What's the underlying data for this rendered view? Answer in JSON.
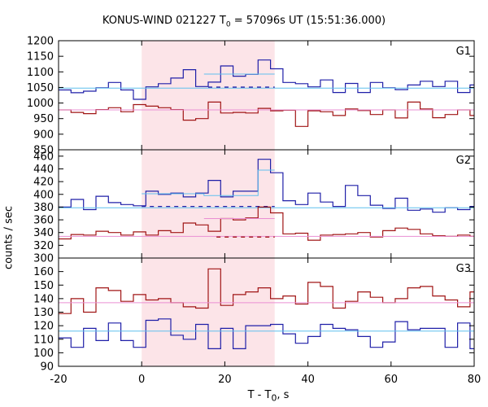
{
  "chart_data": {
    "type": "line",
    "title": "KONUS-WIND 021227 T0 = 57096s UT (15:51:36.000)",
    "title_parts": {
      "pre": "KONUS-WIND 021227 T",
      "sub": "0",
      "post": " = 57096s UT (15:51:36.000)"
    },
    "xlabel_parts": {
      "pre": "T - T",
      "sub": "0",
      "post": ", s"
    },
    "ylabel": "counts / sec",
    "xlim": [
      -20,
      80
    ],
    "xticks": [
      -20,
      0,
      20,
      40,
      60,
      80
    ],
    "highlight_interval": [
      0,
      32
    ],
    "colors": {
      "dark_blue": "#1f1fa8",
      "light_blue": "#5fc0ee",
      "dark_red": "#a01515",
      "pink": "#ea8fd3",
      "highlight": "#fce4e8"
    },
    "panels": [
      {
        "label": "G1",
        "ylim": [
          850,
          1200
        ],
        "yticks": [
          850,
          900,
          950,
          1000,
          1050,
          1100,
          1150,
          1200
        ],
        "series": [
          {
            "color": "dark_blue",
            "edges": [
              -20,
              -17,
              -14,
              -11,
              -8,
              -5,
              -2,
              1,
              4,
              7,
              10,
              13,
              16,
              19,
              22,
              25,
              28,
              31,
              34,
              37,
              40,
              43,
              46,
              49,
              52,
              55,
              58,
              61,
              64,
              67,
              70,
              73,
              76,
              79
            ],
            "values": [
              1042,
              1033,
              1038,
              1049,
              1066,
              1042,
              1012,
              1052,
              1062,
              1080,
              1107,
              1053,
              1067,
              1119,
              1086,
              1092,
              1138,
              1110,
              1066,
              1062,
              1052,
              1074,
              1034,
              1063,
              1034,
              1066,
              1049,
              1043,
              1058,
              1070,
              1053,
              1070,
              1034,
              1058
            ]
          },
          {
            "color": "light_blue",
            "type": "level",
            "value": 1048
          },
          {
            "color": "light_blue",
            "type": "step",
            "edges": [
              15,
              32
            ],
            "values": [
              1093
            ]
          },
          {
            "color": "dark_blue",
            "type": "dashed",
            "range": [
              16,
              32
            ],
            "value": 1051
          },
          {
            "color": "dark_red",
            "edges": [
              -20,
              -17,
              -14,
              -11,
              -8,
              -5,
              -2,
              1,
              4,
              7,
              10,
              13,
              16,
              19,
              22,
              25,
              28,
              31,
              34,
              37,
              40,
              43,
              46,
              49,
              52,
              55,
              58,
              61,
              64,
              67,
              70,
              73,
              76,
              79
            ],
            "values": [
              978,
              970,
              966,
              979,
              985,
              972,
              995,
              990,
              985,
              979,
              945,
              950,
              1003,
              968,
              970,
              968,
              983,
              975,
              977,
              925,
              975,
              972,
              960,
              981,
              976,
              963,
              978,
              952,
              1003,
              981,
              953,
              963,
              978,
              960
            ]
          },
          {
            "color": "pink",
            "type": "level",
            "value": 978
          }
        ]
      },
      {
        "label": "G2",
        "ylim": [
          300,
          470
        ],
        "yticks": [
          300,
          320,
          340,
          360,
          380,
          400,
          420,
          440,
          460
        ],
        "series": [
          {
            "color": "dark_blue",
            "edges": [
              -20,
              -17,
              -14,
              -11,
              -8,
              -5,
              -2,
              1,
              4,
              7,
              10,
              13,
              16,
              19,
              22,
              25,
              28,
              31,
              34,
              37,
              40,
              43,
              46,
              49,
              52,
              55,
              58,
              61,
              64,
              67,
              70,
              73,
              76,
              79
            ],
            "values": [
              380,
              392,
              376,
              397,
              387,
              384,
              382,
              405,
              400,
              402,
              396,
              402,
              422,
              396,
              405,
              405,
              455,
              434,
              390,
              384,
              402,
              388,
              381,
              414,
              398,
              383,
              378,
              394,
              375,
              377,
              372,
              379,
              376,
              381
            ]
          },
          {
            "color": "light_blue",
            "type": "level",
            "value": 379
          },
          {
            "color": "light_blue",
            "type": "step",
            "edges": [
              0,
              15,
              28,
              32
            ],
            "values": [
              401,
              398,
              438
            ]
          },
          {
            "color": "dark_blue",
            "type": "dashed",
            "range": [
              0,
              32
            ],
            "value": 381
          },
          {
            "color": "dark_red",
            "edges": [
              -20,
              -17,
              -14,
              -11,
              -8,
              -5,
              -2,
              1,
              4,
              7,
              10,
              13,
              16,
              19,
              22,
              25,
              28,
              31,
              34,
              37,
              40,
              43,
              46,
              49,
              52,
              55,
              58,
              61,
              64,
              67,
              70,
              73,
              76,
              79
            ],
            "values": [
              330,
              337,
              336,
              342,
              340,
              336,
              341,
              336,
              343,
              340,
              355,
              352,
              342,
              362,
              360,
              363,
              380,
              371,
              338,
              339,
              328,
              336,
              337,
              338,
              340,
              333,
              343,
              347,
              345,
              338,
              335,
              334,
              336,
              334
            ]
          },
          {
            "color": "pink",
            "type": "level",
            "value": 334
          },
          {
            "color": "pink",
            "type": "step",
            "edges": [
              15,
              32
            ],
            "values": [
              362
            ]
          },
          {
            "color": "dark_red",
            "type": "dashed",
            "range": [
              18,
              32
            ],
            "value": 333
          }
        ]
      },
      {
        "label": "G3",
        "ylim": [
          90,
          170
        ],
        "yticks": [
          90,
          100,
          110,
          120,
          130,
          140,
          150,
          160
        ],
        "series": [
          {
            "color": "dark_red",
            "edges": [
              -20,
              -17,
              -14,
              -11,
              -8,
              -5,
              -2,
              1,
              4,
              7,
              10,
              13,
              16,
              19,
              22,
              25,
              28,
              31,
              34,
              37,
              40,
              43,
              46,
              49,
              52,
              55,
              58,
              61,
              64,
              67,
              70,
              73,
              76,
              79
            ],
            "values": [
              129,
              140,
              130,
              148,
              146,
              138,
              143,
              139,
              140,
              137,
              134,
              133,
              162,
              135,
              143,
              145,
              148,
              140,
              142,
              136,
              152,
              149,
              133,
              138,
              145,
              141,
              137,
              140,
              148,
              149,
              142,
              139,
              134,
              145
            ]
          },
          {
            "color": "pink",
            "type": "level",
            "value": 137
          },
          {
            "color": "dark_blue",
            "edges": [
              -20,
              -17,
              -14,
              -11,
              -8,
              -5,
              -2,
              1,
              4,
              7,
              10,
              13,
              16,
              19,
              22,
              25,
              28,
              31,
              34,
              37,
              40,
              43,
              46,
              49,
              52,
              55,
              58,
              61,
              64,
              67,
              70,
              73,
              76,
              79
            ],
            "values": [
              111,
              104,
              118,
              109,
              122,
              109,
              104,
              124,
              125,
              113,
              110,
              121,
              103,
              118,
              103,
              120,
              120,
              121,
              114,
              107,
              112,
              121,
              118,
              117,
              112,
              104,
              108,
              123,
              117,
              118,
              118,
              104,
              122,
              103
            ]
          },
          {
            "color": "light_blue",
            "type": "level",
            "value": 116
          }
        ]
      }
    ]
  }
}
